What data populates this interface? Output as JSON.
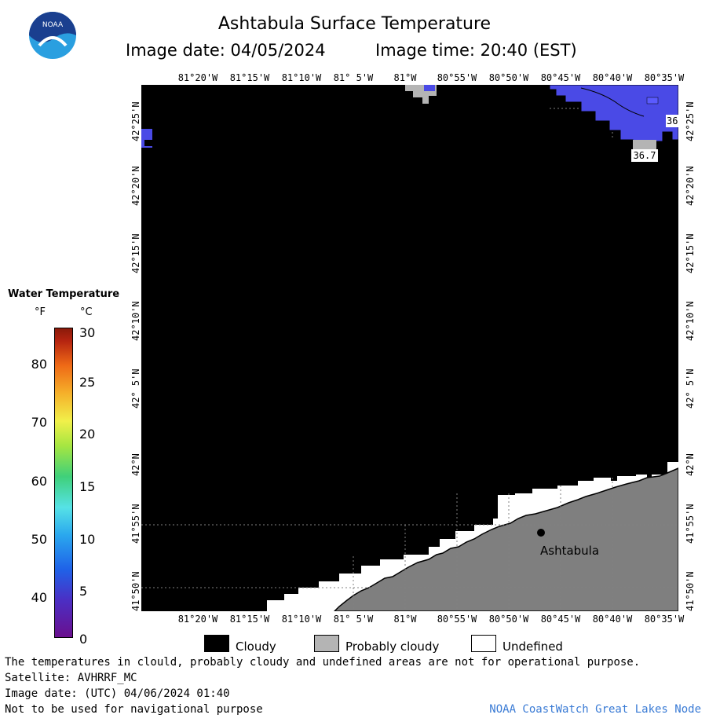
{
  "header": {
    "title": "Ashtabula Surface Temperature",
    "image_date": "Image date: 04/05/2024",
    "image_time": "Image time: 20:40 (EST)"
  },
  "logo": {
    "text": "NOAA",
    "colors": {
      "dark": "#1a3f8f",
      "light": "#2a9fe0"
    }
  },
  "map": {
    "lon_labels": [
      "81°20'W",
      "81°15'W",
      "81°10'W",
      "81° 5'W",
      "81°W",
      "80°55'W",
      "80°50'W",
      "80°45'W",
      "80°40'W",
      "80°35'W"
    ],
    "lat_labels": [
      "42°25'N",
      "42°20'N",
      "42°15'N",
      "42°10'N",
      "42° 5'N",
      "42°N",
      "41°55'N",
      "41°50'N"
    ],
    "city": "Ashtabula",
    "sst_labels": [
      "36.7",
      "36"
    ],
    "colors": {
      "cloudy": "#000000",
      "probably_cloudy": "#b4b4b4",
      "undefined": "#ffffff",
      "land": "#7f7f7f",
      "water_cold": "#4a4ae6"
    }
  },
  "legend": {
    "title": "Water Temperature",
    "unit_f": "°F",
    "unit_c": "°C",
    "f_ticks": [
      "80",
      "70",
      "60",
      "50",
      "40"
    ],
    "c_ticks": [
      "30",
      "25",
      "20",
      "15",
      "10",
      "5",
      "0"
    ],
    "items": [
      {
        "label": "Cloudy",
        "color": "#000000"
      },
      {
        "label": "Probably cloudy",
        "color": "#b4b4b4"
      },
      {
        "label": "Undefined",
        "color": "#ffffff"
      }
    ]
  },
  "footer": {
    "note": "The temperatures in clould, probably cloudy and undefined areas are not for operational purpose.",
    "satellite": "Satellite: AVHRRF_MC",
    "utc_date": "Image date: (UTC) 04/06/2024  01:40",
    "warning": "Not to be used for navigational purpose",
    "credit": "NOAA CoastWatch Great Lakes Node"
  }
}
